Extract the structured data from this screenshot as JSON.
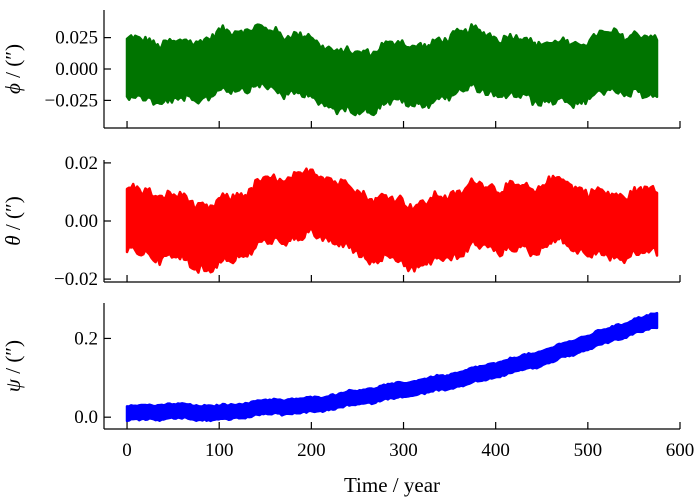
{
  "chart_data": [
    {
      "type": "line",
      "panel": "top",
      "series": [
        {
          "name": "phi",
          "color": "#007400",
          "trend": [
            [
              0,
              0.0
            ],
            [
              60,
              -0.003
            ],
            [
              130,
              0.01
            ],
            [
              190,
              0.003
            ],
            [
              240,
              -0.012
            ],
            [
              300,
              -0.002
            ],
            [
              330,
              -0.006
            ],
            [
              360,
              0.008
            ],
            [
              420,
              0.001
            ],
            [
              480,
              -0.004
            ],
            [
              530,
              0.006
            ],
            [
              575,
              0.0
            ]
          ],
          "amplitude": 0.026
        }
      ],
      "x": {
        "min": 0,
        "max": 575
      },
      "xlim": [
        -25,
        600
      ],
      "ylim": [
        -0.047,
        0.047
      ],
      "yticks": [
        {
          "value": 0.025,
          "label": "0.025"
        },
        {
          "value": 0.0,
          "label": "0.000"
        },
        {
          "value": -0.025,
          "label": "−0.025"
        }
      ],
      "ylabel_symbol": "ϕ",
      "ylabel_unit": " / (″)"
    },
    {
      "type": "line",
      "panel": "middle",
      "series": [
        {
          "name": "theta",
          "color": "#ff0000",
          "trend": [
            [
              0,
              0.0
            ],
            [
              50,
              -0.002
            ],
            [
              90,
              -0.006
            ],
            [
              150,
              0.003
            ],
            [
              210,
              0.006
            ],
            [
              260,
              -0.002
            ],
            [
              320,
              -0.005
            ],
            [
              380,
              0.002
            ],
            [
              440,
              0.0
            ],
            [
              460,
              0.004
            ],
            [
              520,
              -0.002
            ],
            [
              575,
              0.0
            ]
          ],
          "amplitude": 0.012
        }
      ],
      "x": {
        "min": 0,
        "max": 575
      },
      "xlim": [
        -25,
        600
      ],
      "ylim": [
        -0.021,
        0.021
      ],
      "yticks": [
        {
          "value": 0.02,
          "label": "0.02"
        },
        {
          "value": 0.0,
          "label": "0.00"
        },
        {
          "value": -0.02,
          "label": "−0.02"
        }
      ],
      "ylabel_symbol": "θ",
      "ylabel_unit": " / (″)"
    },
    {
      "type": "line",
      "panel": "bottom",
      "series": [
        {
          "name": "psi",
          "color": "#0000ff",
          "trend": [
            [
              0,
              0.01
            ],
            [
              50,
              0.015
            ],
            [
              100,
              0.01
            ],
            [
              150,
              0.025
            ],
            [
              200,
              0.03
            ],
            [
              250,
              0.05
            ],
            [
              300,
              0.07
            ],
            [
              350,
              0.09
            ],
            [
              400,
              0.12
            ],
            [
              450,
              0.15
            ],
            [
              500,
              0.19
            ],
            [
              550,
              0.23
            ],
            [
              575,
              0.245
            ]
          ],
          "amplitude": 0.02
        }
      ],
      "x": {
        "min": 0,
        "max": 575
      },
      "xlim": [
        -25,
        600
      ],
      "ylim": [
        -0.03,
        0.29
      ],
      "yticks": [
        {
          "value": 0.2,
          "label": "0.2"
        },
        {
          "value": 0.0,
          "label": "0.0"
        }
      ],
      "ylabel_symbol": "ψ",
      "ylabel_unit": " / (″)",
      "xticks": [
        {
          "value": 0,
          "label": "0"
        },
        {
          "value": 100,
          "label": "100"
        },
        {
          "value": 200,
          "label": "200"
        },
        {
          "value": 300,
          "label": "300"
        },
        {
          "value": 400,
          "label": "400"
        },
        {
          "value": 500,
          "label": "500"
        },
        {
          "value": 600,
          "label": "600"
        }
      ],
      "xlabel": "Time / year"
    }
  ]
}
